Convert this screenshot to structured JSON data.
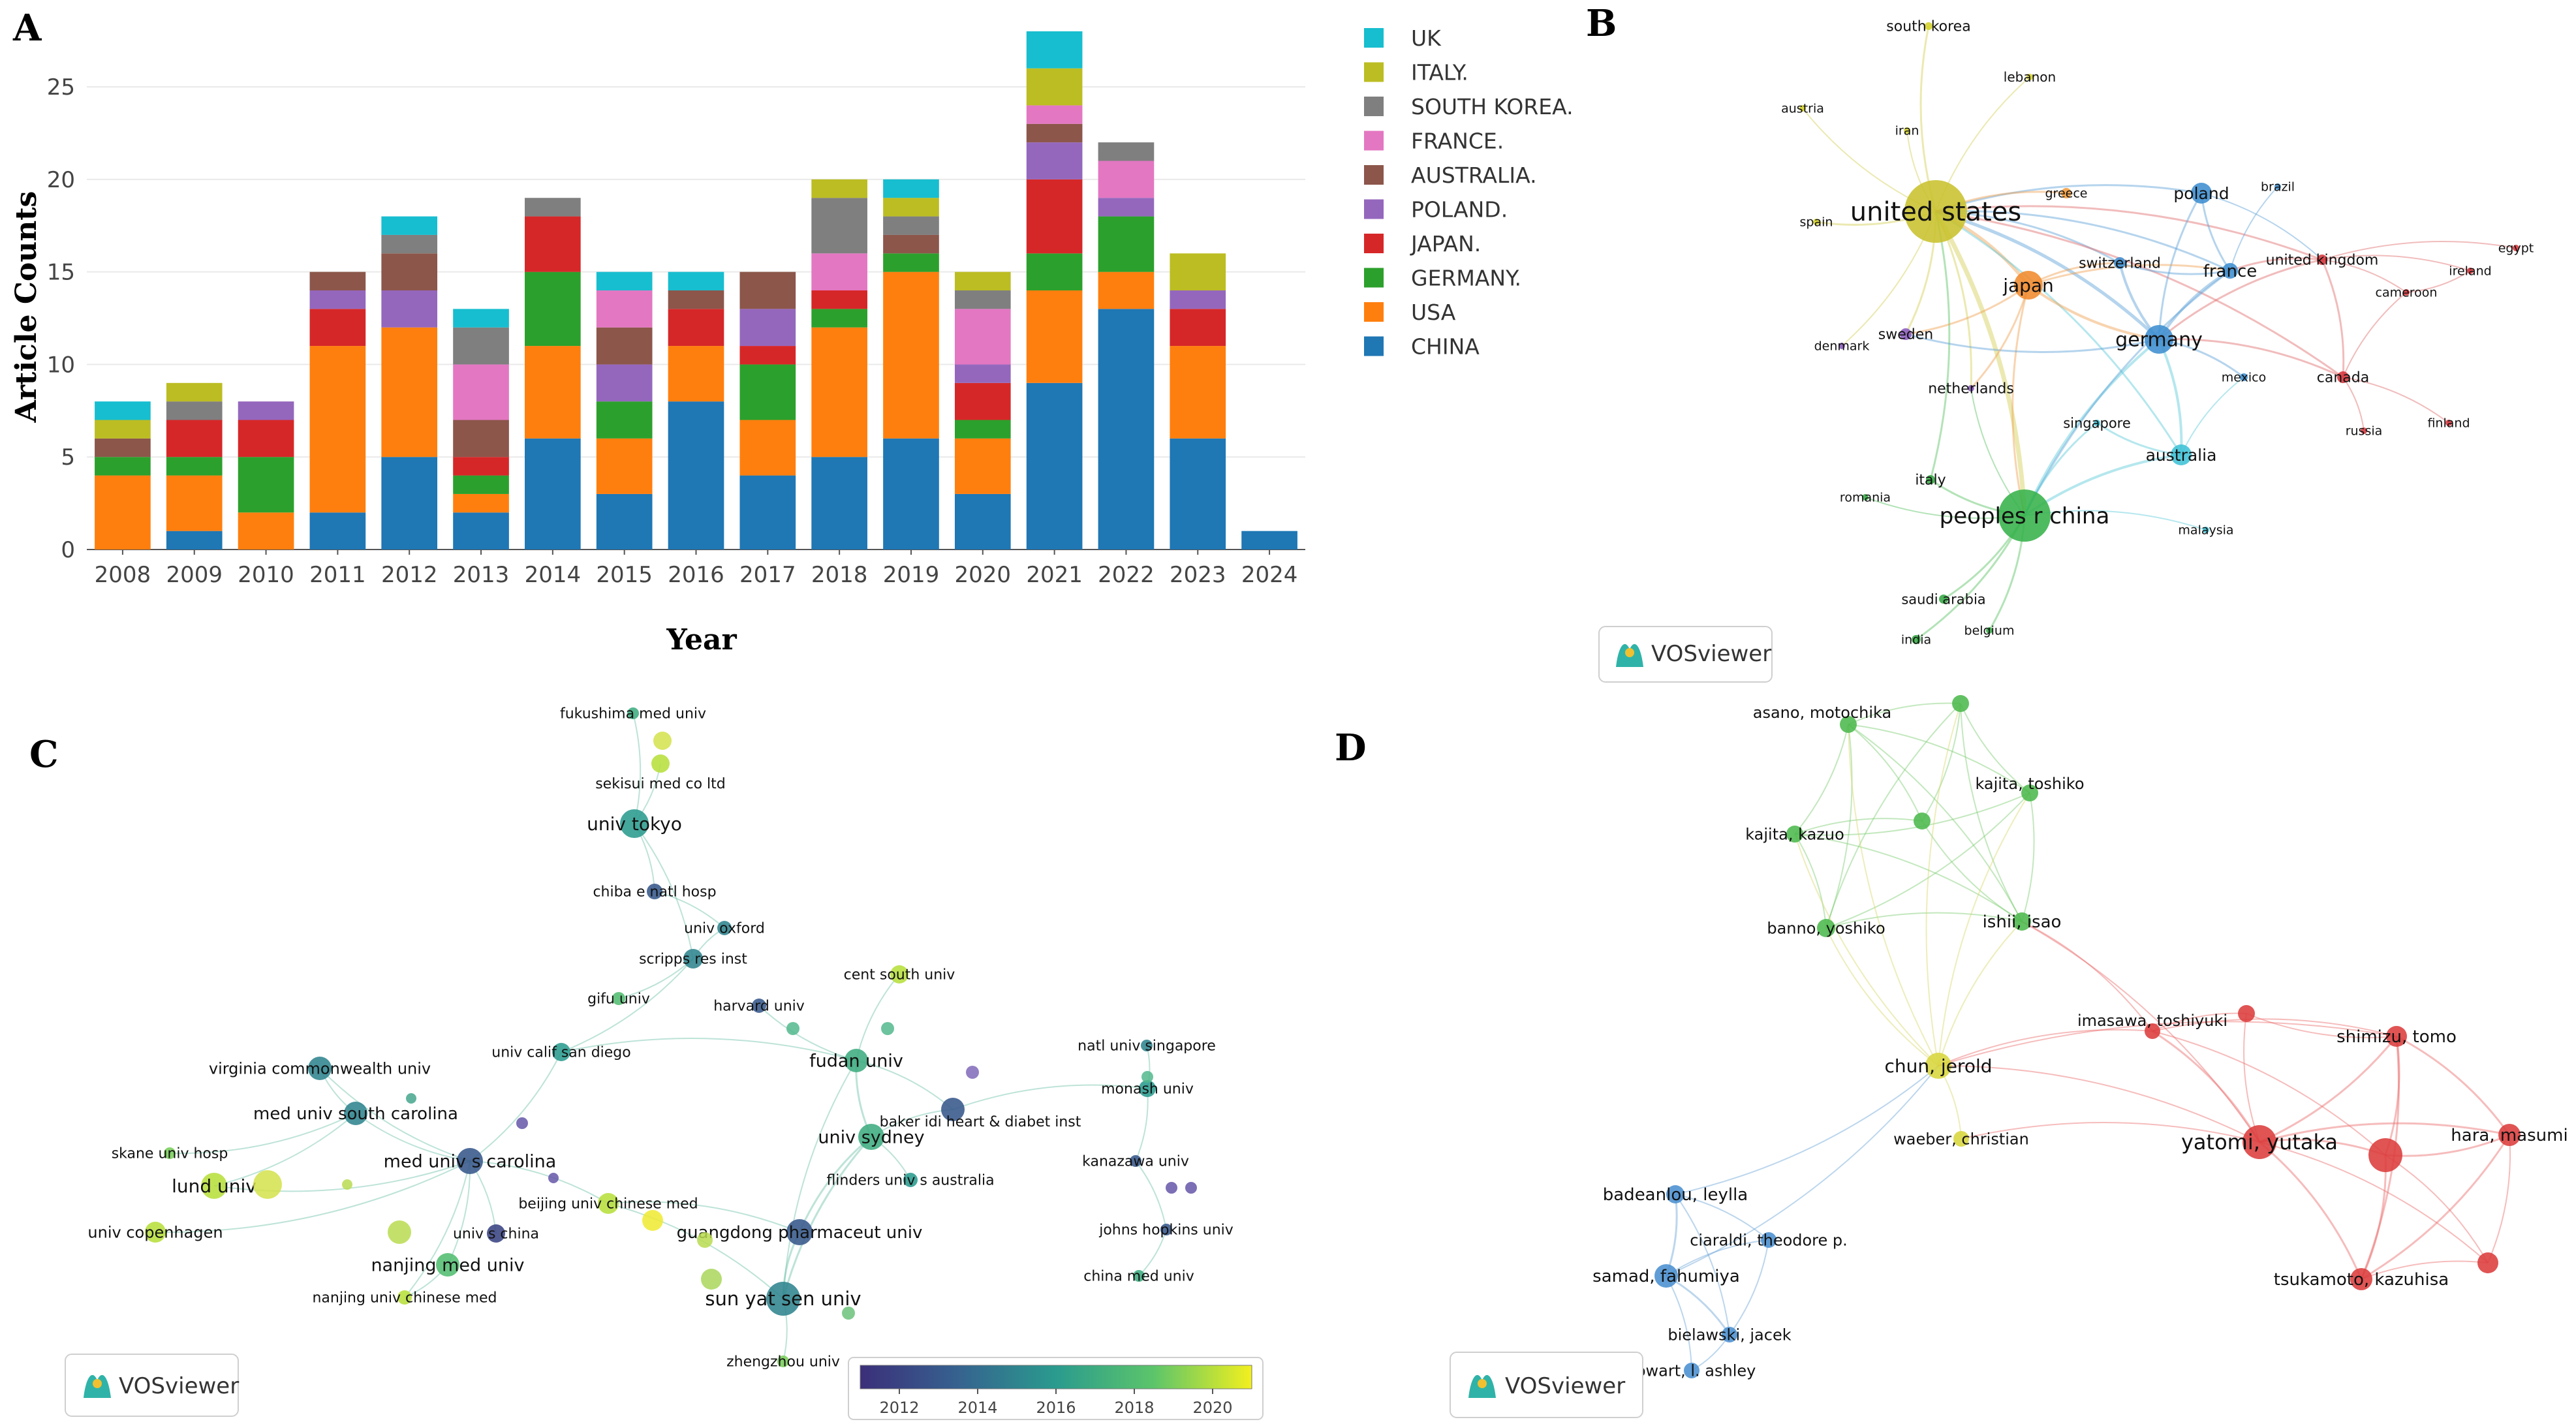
{
  "panels": {
    "a": "A",
    "b": "B",
    "c": "C",
    "d": "D"
  },
  "colors": {
    "CHINA": "#1f77b4",
    "USA": "#ff7f0e",
    "GERMANY.": "#2ca02c",
    "JAPAN.": "#d62728",
    "POLAND.": "#9467bd",
    "AUSTRALIA.": "#8c564b",
    "FRANCE.": "#e377c2",
    "SOUTH KOREA.": "#7f7f7f",
    "ITALY.": "#bcbd22",
    "UK": "#17becf"
  },
  "chart_data": {
    "type": "bar",
    "stacked": true,
    "title": "",
    "xlabel": "Year",
    "ylabel": "Article Counts",
    "ylim": [
      0,
      28
    ],
    "yticks": [
      0,
      5,
      10,
      15,
      20,
      25
    ],
    "categories": [
      "2008",
      "2009",
      "2010",
      "2011",
      "2012",
      "2013",
      "2014",
      "2015",
      "2016",
      "2017",
      "2018",
      "2019",
      "2020",
      "2021",
      "2022",
      "2023",
      "2024"
    ],
    "legend_position": "right",
    "series": [
      {
        "name": "CHINA",
        "values": [
          0,
          1,
          0,
          2,
          5,
          2,
          6,
          3,
          8,
          4,
          5,
          6,
          3,
          9,
          13,
          6,
          1
        ]
      },
      {
        "name": "USA",
        "values": [
          4,
          3,
          2,
          9,
          7,
          1,
          5,
          3,
          3,
          3,
          7,
          9,
          3,
          5,
          2,
          5,
          0
        ]
      },
      {
        "name": "GERMANY.",
        "values": [
          1,
          1,
          3,
          0,
          0,
          1,
          4,
          2,
          0,
          3,
          1,
          1,
          1,
          2,
          3,
          0,
          0
        ]
      },
      {
        "name": "JAPAN.",
        "values": [
          0,
          2,
          2,
          2,
          0,
          1,
          3,
          0,
          2,
          1,
          1,
          0,
          2,
          4,
          0,
          2,
          0
        ]
      },
      {
        "name": "POLAND.",
        "values": [
          0,
          0,
          1,
          1,
          2,
          0,
          0,
          2,
          0,
          2,
          0,
          0,
          1,
          2,
          1,
          1,
          0
        ]
      },
      {
        "name": "AUSTRALIA.",
        "values": [
          1,
          0,
          0,
          1,
          2,
          2,
          0,
          2,
          1,
          2,
          0,
          1,
          0,
          1,
          0,
          0,
          0
        ]
      },
      {
        "name": "FRANCE.",
        "values": [
          0,
          0,
          0,
          0,
          0,
          3,
          0,
          2,
          0,
          0,
          2,
          0,
          3,
          1,
          2,
          0,
          0
        ]
      },
      {
        "name": "SOUTH KOREA.",
        "values": [
          0,
          1,
          0,
          0,
          1,
          2,
          1,
          0,
          0,
          0,
          3,
          1,
          1,
          0,
          1,
          0,
          0
        ]
      },
      {
        "name": "ITALY.",
        "values": [
          1,
          1,
          0,
          0,
          0,
          0,
          0,
          0,
          0,
          0,
          1,
          1,
          1,
          2,
          0,
          2,
          0
        ]
      },
      {
        "name": "UK",
        "values": [
          1,
          0,
          0,
          0,
          1,
          1,
          0,
          1,
          1,
          0,
          0,
          1,
          0,
          2,
          0,
          0,
          0
        ]
      }
    ],
    "legend_order": [
      "UK",
      "ITALY.",
      "SOUTH KOREA.",
      "FRANCE.",
      "AUSTRALIA.",
      "POLAND.",
      "JAPAN.",
      "GERMANY.",
      "USA",
      "CHINA"
    ]
  },
  "vosviewer_label": "VOSviewer",
  "country_network": {
    "nodes": [
      {
        "label": "south korea",
        "color": "#d4d12a"
      },
      {
        "label": "lebanon",
        "color": "#d4d12a"
      },
      {
        "label": "austria",
        "color": "#d4d12a"
      },
      {
        "label": "iran",
        "color": "#d4d12a"
      },
      {
        "label": "united states",
        "color": "#c8c22e"
      },
      {
        "label": "greece",
        "color": "#f39c3c"
      },
      {
        "label": "poland",
        "color": "#3e8ed0"
      },
      {
        "label": "brazil",
        "color": "#3e8ed0"
      },
      {
        "label": "spain",
        "color": "#d4d12a"
      },
      {
        "label": "switzerland",
        "color": "#3e8ed0"
      },
      {
        "label": "france",
        "color": "#3e8ed0"
      },
      {
        "label": "united kingdom",
        "color": "#d6363b"
      },
      {
        "label": "egypt",
        "color": "#d6363b"
      },
      {
        "label": "ireland",
        "color": "#d6363b"
      },
      {
        "label": "japan",
        "color": "#f08a2c"
      },
      {
        "label": "cameroon",
        "color": "#d6363b"
      },
      {
        "label": "sweden",
        "color": "#8a5bbd"
      },
      {
        "label": "germany",
        "color": "#3e8ed0"
      },
      {
        "label": "denmark",
        "color": "#8a5bbd"
      },
      {
        "label": "mexico",
        "color": "#3e8ed0"
      },
      {
        "label": "canada",
        "color": "#d6363b"
      },
      {
        "label": "netherlands",
        "color": "#8a5bbd"
      },
      {
        "label": "russia",
        "color": "#d6363b"
      },
      {
        "label": "finland",
        "color": "#d6363b"
      },
      {
        "label": "singapore",
        "color": "#3fc1d6"
      },
      {
        "label": "australia",
        "color": "#3fc1d6"
      },
      {
        "label": "italy",
        "color": "#36a844"
      },
      {
        "label": "romania",
        "color": "#36a844"
      },
      {
        "label": "peoples r china",
        "color": "#36b24a"
      },
      {
        "label": "malaysia",
        "color": "#3fc1d6"
      },
      {
        "label": "saudi arabia",
        "color": "#36a844"
      },
      {
        "label": "india",
        "color": "#36a844"
      },
      {
        "label": "belgium",
        "color": "#36a844"
      }
    ]
  },
  "institution_network": {
    "nodes": [
      {
        "label": "fukushima med univ"
      },
      {
        "label": "sekisui med co ltd"
      },
      {
        "label": "univ tokyo"
      },
      {
        "label": "chiba e natl hosp"
      },
      {
        "label": "univ oxford"
      },
      {
        "label": "scripps res inst"
      },
      {
        "label": "cent south univ"
      },
      {
        "label": "gifu univ"
      },
      {
        "label": "harvard univ"
      },
      {
        "label": "univ calif san diego"
      },
      {
        "label": "natl univ singapore"
      },
      {
        "label": "virginia commonwealth univ"
      },
      {
        "label": "fudan univ"
      },
      {
        "label": "monash univ"
      },
      {
        "label": "med univ south carolina"
      },
      {
        "label": "baker idi heart & diabet inst"
      },
      {
        "label": "skane univ hosp"
      },
      {
        "label": "univ sydney"
      },
      {
        "label": "med univ s carolina"
      },
      {
        "label": "lund univ"
      },
      {
        "label": "kanazawa univ"
      },
      {
        "label": "flinders univ s australia"
      },
      {
        "label": "beijing univ chinese med"
      },
      {
        "label": "univ s china"
      },
      {
        "label": "univ copenhagen"
      },
      {
        "label": "guangdong pharmaceut univ"
      },
      {
        "label": "johns hopkins univ"
      },
      {
        "label": "nanjing med univ"
      },
      {
        "label": "china med univ"
      },
      {
        "label": "nanjing univ chinese med"
      },
      {
        "label": "sun yat sen univ"
      },
      {
        "label": "zhengzhou univ"
      }
    ],
    "colorbar": {
      "ticks": [
        "2012",
        "2014",
        "2016",
        "2018",
        "2020"
      ],
      "range": [
        2011,
        2021
      ]
    }
  },
  "author_network": {
    "nodes": [
      {
        "label": "asano, motochika",
        "color": "#4cb84c"
      },
      {
        "label": "kajita, toshiko",
        "color": "#4cb84c"
      },
      {
        "label": "kajita, kazuo",
        "color": "#4cb84c"
      },
      {
        "label": "banno, yoshiko",
        "color": "#4cb84c"
      },
      {
        "label": "ishii, isao",
        "color": "#4cb84c"
      },
      {
        "label": "imasawa, toshiyuki",
        "color": "#dc3c3c"
      },
      {
        "label": "shimizu, tomo",
        "color": "#dc3c3c"
      },
      {
        "label": "chun, jerold",
        "color": "#d8d63c"
      },
      {
        "label": "yatomi, yutaka",
        "color": "#dc3c3c"
      },
      {
        "label": "hara, masumi",
        "color": "#dc3c3c"
      },
      {
        "label": "waeber, christian",
        "color": "#d8d63c"
      },
      {
        "label": "badeanlou, leylla",
        "color": "#4a8fd0"
      },
      {
        "label": "ciaraldi, theodore p.",
        "color": "#4a8fd0"
      },
      {
        "label": "samad, fahumiya",
        "color": "#4a8fd0"
      },
      {
        "label": "tsukamoto, kazuhisa",
        "color": "#dc3c3c"
      },
      {
        "label": "bielawski, jacek",
        "color": "#4a8fd0"
      },
      {
        "label": "cowart, l. ashley",
        "color": "#4a8fd0"
      }
    ]
  }
}
